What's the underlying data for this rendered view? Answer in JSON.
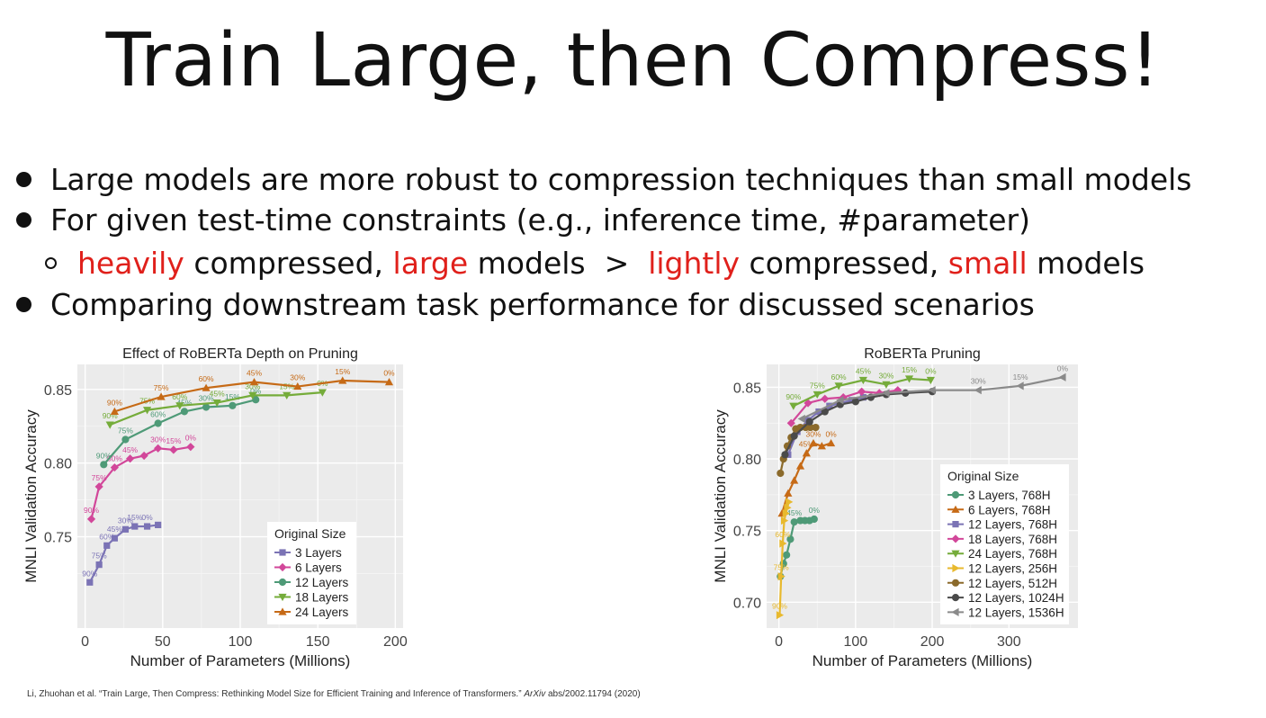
{
  "slide": {
    "title": "Train Large, then Compress!",
    "bullets": {
      "b1": "Large models are more robust to compression techniques than small models",
      "b2": "For given test-time constraints (e.g., inference time, #parameter)",
      "sub": {
        "w1": "heavily",
        "w2": " compressed, ",
        "w3": "large",
        "w4": " models  >  ",
        "w5": "lightly",
        "w6": " compressed, ",
        "w7": "small",
        "w8": " models"
      },
      "b3": "Comparing downstream task performance for discussed scenarios"
    },
    "citation_pre": "Li, Zhuohan et al. “Train Large, Then Compress: Rethinking Model Size for Efficient Training and Inference of Transformers.” ",
    "citation_journal": "ArXiv",
    "citation_post": " abs/2002.11794 (2020)"
  },
  "chart_data": [
    {
      "type": "line",
      "title": "Effect of RoBERTa Depth on Pruning",
      "xlabel": "Number of Parameters (Millions)",
      "ylabel": "MNLI Validation Accuracy",
      "xlim": [
        -5,
        205
      ],
      "ylim": [
        0.688,
        0.867
      ],
      "xticks": [
        0,
        50,
        100,
        150,
        200
      ],
      "yticks": [
        0.75,
        0.8,
        0.85
      ],
      "ytick_labels": [
        "0.75",
        "0.80",
        "0.85"
      ],
      "legend_title": "Original Size",
      "legend_position": "bottom-right",
      "series": [
        {
          "name": "3 Layers",
          "color": "#7b73b5",
          "marker": "square",
          "x": [
            3,
            9,
            14,
            19,
            26,
            32,
            40,
            47
          ],
          "y": [
            0.719,
            0.731,
            0.744,
            0.749,
            0.755,
            0.757,
            0.757,
            0.758
          ],
          "labels": [
            "90%",
            "75%",
            "60%",
            "45%",
            "30%",
            "15%",
            "0%",
            ""
          ]
        },
        {
          "name": "6 Layers",
          "color": "#d2479a",
          "marker": "diamond",
          "x": [
            4,
            9,
            19,
            29,
            38,
            47,
            57,
            68
          ],
          "y": [
            0.762,
            0.784,
            0.797,
            0.803,
            0.805,
            0.81,
            0.809,
            0.811
          ],
          "labels": [
            "90%",
            "75%",
            "60%",
            "45%",
            "",
            "30%",
            "15%",
            "0%"
          ]
        },
        {
          "name": "12 Layers",
          "color": "#4e9a77",
          "marker": "circle",
          "x": [
            12,
            26,
            47,
            64,
            78,
            95,
            110
          ],
          "y": [
            0.799,
            0.816,
            0.827,
            0.835,
            0.838,
            0.839,
            0.843
          ],
          "labels": [
            "90%",
            "75%",
            "60%",
            "45%",
            "30%",
            "15%",
            "0%"
          ]
        },
        {
          "name": "18 Layers",
          "color": "#75ac3a",
          "marker": "triangle-down",
          "x": [
            16,
            40,
            61,
            85,
            108,
            130,
            153
          ],
          "y": [
            0.826,
            0.836,
            0.839,
            0.841,
            0.846,
            0.846,
            0.848
          ],
          "labels": [
            "90%",
            "75%",
            "60%",
            "45%",
            "30%",
            "15%",
            "0%"
          ]
        },
        {
          "name": "24 Layers",
          "color": "#c66a16",
          "marker": "triangle-up",
          "x": [
            19,
            49,
            78,
            109,
            137,
            166,
            196
          ],
          "y": [
            0.835,
            0.845,
            0.851,
            0.855,
            0.852,
            0.856,
            0.855
          ],
          "labels": [
            "90%",
            "75%",
            "60%",
            "45%",
            "30%",
            "15%",
            "0%"
          ]
        }
      ]
    },
    {
      "type": "line",
      "title": "RoBERTa Pruning",
      "xlabel": "Number of Parameters (Millions)",
      "ylabel": "MNLI Validation Accuracy",
      "xlim": [
        -16,
        390
      ],
      "ylim": [
        0.682,
        0.866
      ],
      "xticks": [
        0,
        100,
        200,
        300
      ],
      "yticks": [
        0.7,
        0.75,
        0.8,
        0.85
      ],
      "ytick_labels": [
        "0.70",
        "0.75",
        "0.80",
        "0.85"
      ],
      "legend_title": "Original Size",
      "legend_position": "bottom-right",
      "series": [
        {
          "name": "3 Layers, 768H",
          "color": "#4e9a77",
          "marker": "circle",
          "x": [
            2,
            6,
            10,
            15,
            20,
            28,
            34,
            40,
            46
          ],
          "y": [
            0.718,
            0.727,
            0.733,
            0.744,
            0.756,
            0.757,
            0.757,
            0.757,
            0.758
          ],
          "labels": [
            "",
            "",
            "",
            "",
            "45%",
            "",
            "",
            "",
            "0%"
          ]
        },
        {
          "name": "6 Layers, 768H",
          "color": "#c66a16",
          "marker": "triangle-up",
          "x": [
            4,
            12,
            20,
            28,
            36,
            45,
            56,
            68
          ],
          "y": [
            0.762,
            0.776,
            0.785,
            0.795,
            0.804,
            0.811,
            0.809,
            0.811
          ],
          "labels": [
            "",
            "",
            "",
            "",
            "45%",
            "30%",
            "",
            "0%"
          ]
        },
        {
          "name": "12 Layers, 768H",
          "color": "#7b73b5",
          "marker": "square",
          "x": [
            12,
            24,
            38,
            52,
            66,
            80,
            95,
            110
          ],
          "y": [
            0.803,
            0.819,
            0.827,
            0.833,
            0.837,
            0.839,
            0.841,
            0.843
          ],
          "labels": [
            "",
            "",
            "",
            "",
            "",
            "",
            "",
            ""
          ]
        },
        {
          "name": "18 Layers, 768H",
          "color": "#d2479a",
          "marker": "diamond",
          "x": [
            16,
            38,
            60,
            84,
            108,
            131,
            155
          ],
          "y": [
            0.825,
            0.839,
            0.842,
            0.843,
            0.847,
            0.846,
            0.848
          ],
          "labels": [
            "",
            "",
            "",
            "",
            "",
            "",
            ""
          ]
        },
        {
          "name": "24 Layers, 768H",
          "color": "#75ac3a",
          "marker": "triangle-down",
          "x": [
            19,
            50,
            78,
            110,
            140,
            170,
            198
          ],
          "y": [
            0.837,
            0.845,
            0.851,
            0.855,
            0.852,
            0.856,
            0.855
          ],
          "labels": [
            "90%",
            "75%",
            "60%",
            "45%",
            "30%",
            "15%",
            "0%"
          ]
        },
        {
          "name": "12 Layers, 256H",
          "color": "#e8b92e",
          "marker": "triangle-right",
          "x": [
            1,
            3,
            5,
            7,
            9,
            11,
            13
          ],
          "y": [
            0.691,
            0.718,
            0.741,
            0.757,
            0.762,
            0.766,
            0.77
          ],
          "labels": [
            "90%",
            "75%",
            "60%",
            "",
            "",
            "",
            ""
          ]
        },
        {
          "name": "12 Layers, 512H",
          "color": "#8b6a2b",
          "marker": "circle",
          "x": [
            2,
            6,
            11,
            16,
            22,
            28,
            35,
            41,
            48
          ],
          "y": [
            0.79,
            0.8,
            0.809,
            0.815,
            0.821,
            0.822,
            0.822,
            0.822,
            0.822
          ],
          "labels": [
            "",
            "",
            "",
            "",
            "",
            "",
            "",
            "",
            ""
          ]
        },
        {
          "name": "12 Layers, 1024H",
          "color": "#4a4a4a",
          "marker": "circle",
          "x": [
            8,
            20,
            40,
            60,
            80,
            100,
            120,
            140,
            165,
            200
          ],
          "y": [
            0.803,
            0.816,
            0.826,
            0.833,
            0.838,
            0.84,
            0.843,
            0.845,
            0.846,
            0.847
          ],
          "labels": [
            "",
            "",
            "",
            "",
            "",
            "",
            "",
            "",
            "",
            ""
          ]
        },
        {
          "name": "12 Layers, 1536H",
          "color": "#8a8a8a",
          "marker": "triangle-left",
          "x": [
            30,
            80,
            140,
            200,
            260,
            315,
            370
          ],
          "y": [
            0.828,
            0.841,
            0.846,
            0.848,
            0.848,
            0.851,
            0.857
          ],
          "labels": [
            "",
            "",
            "",
            "",
            "30%",
            "15%",
            "0%"
          ]
        }
      ]
    }
  ]
}
